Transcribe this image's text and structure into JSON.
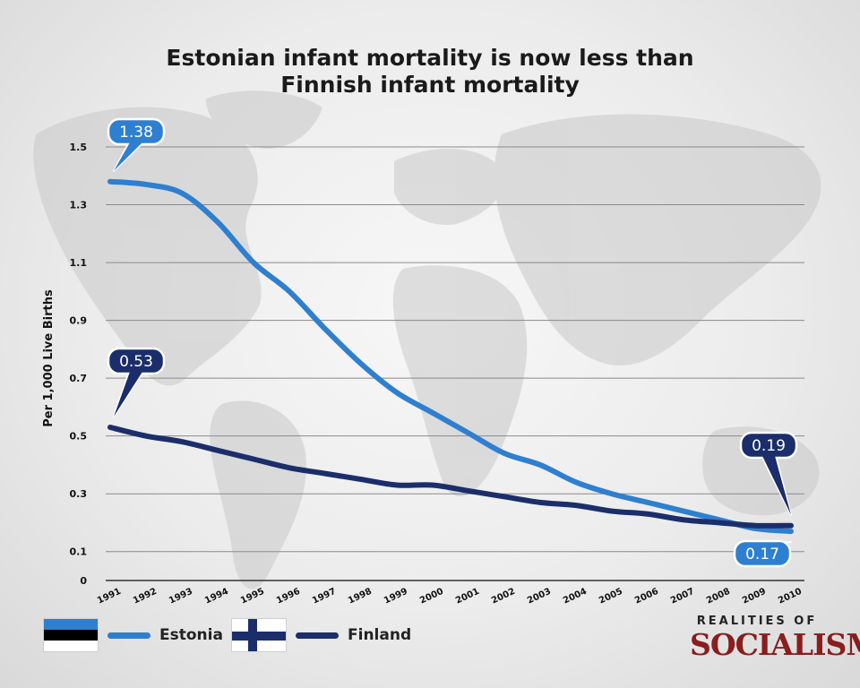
{
  "title_lines": [
    "Estonian infant mortality is now less than",
    "Finnish infant mortality"
  ],
  "colors": {
    "estonia": "#2f7fd0",
    "finland": "#1b2e6b",
    "grid": "#8a8a8a",
    "brand": "#8a1d1d"
  },
  "chart_data": {
    "type": "line",
    "title": "Estonian infant mortality is now less than Finnish infant mortality",
    "xlabel": "",
    "ylabel": "Per 1,000 Live Births",
    "x": [
      "1991",
      "1992",
      "1993",
      "1994",
      "1995",
      "1996",
      "1997",
      "1998",
      "1999",
      "2000",
      "2001",
      "2002",
      "2003",
      "2004",
      "2005",
      "2006",
      "2007",
      "2008",
      "2009",
      "2010"
    ],
    "yticks": [
      "0",
      "0.1",
      "0.3",
      "0.5",
      "0.7",
      "0.9",
      "1.1",
      "1.3",
      "1.5"
    ],
    "ylim": [
      0,
      1.5
    ],
    "grid": true,
    "legend_position": "bottom-left",
    "series": [
      {
        "name": "Estonia",
        "values": [
          1.38,
          1.37,
          1.34,
          1.24,
          1.1,
          1.0,
          0.87,
          0.75,
          0.65,
          0.58,
          0.51,
          0.44,
          0.4,
          0.34,
          0.3,
          0.27,
          0.24,
          0.21,
          0.18,
          0.17
        ]
      },
      {
        "name": "Finland",
        "values": [
          0.53,
          0.5,
          0.48,
          0.45,
          0.42,
          0.39,
          0.37,
          0.35,
          0.33,
          0.33,
          0.31,
          0.29,
          0.27,
          0.26,
          0.24,
          0.23,
          0.21,
          0.2,
          0.19,
          0.19
        ]
      }
    ],
    "callouts": [
      {
        "text": "1.38",
        "series": "Estonia"
      },
      {
        "text": "0.53",
        "series": "Finland"
      },
      {
        "text": "0.19",
        "series": "Finland"
      },
      {
        "text": "0.17",
        "series": "Estonia"
      }
    ]
  },
  "legend": {
    "estonia_label": "Estonia",
    "finland_label": "Finland"
  },
  "brand": {
    "top": "REALITIES OF",
    "main": "SOCIALISM"
  }
}
